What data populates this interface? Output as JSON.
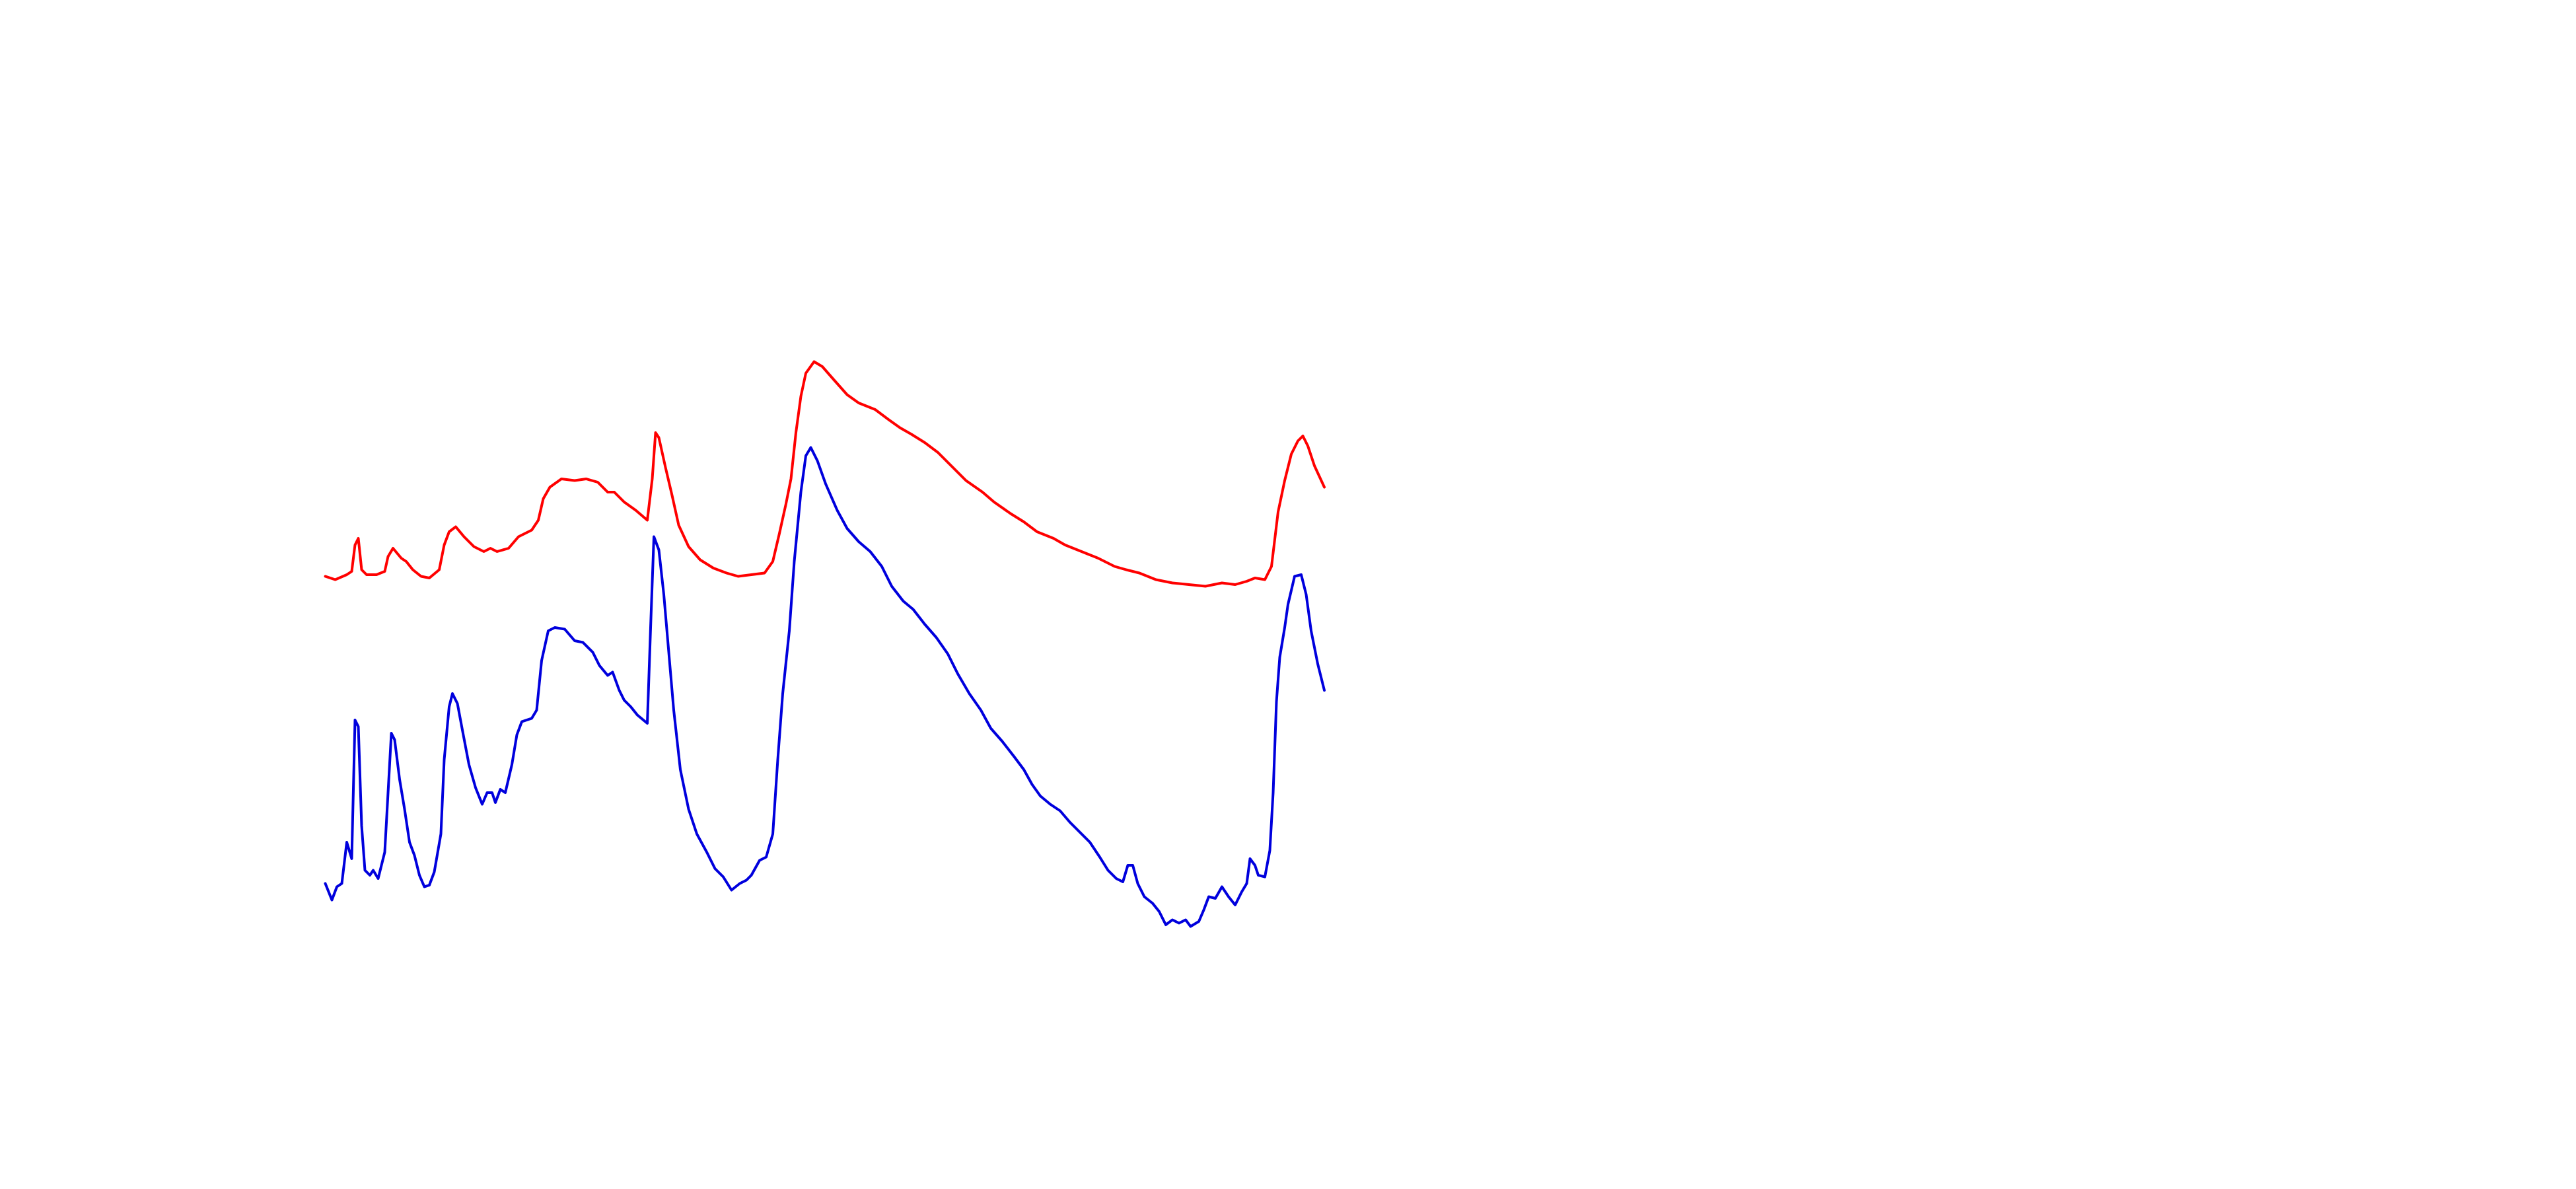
{
  "chart_data": {
    "type": "line",
    "xlim": [
      0,
      1560
    ],
    "ylim": [
      720,
      0
    ],
    "series": [
      {
        "color": "#ff0000",
        "x": [
          197,
          203,
          210,
          213,
          215,
          217,
          219,
          222,
          228,
          233,
          235,
          238,
          243,
          246,
          250,
          255,
          260,
          266,
          269,
          272,
          276,
          281,
          287,
          293,
          297,
          301,
          308,
          314,
          322,
          326,
          329,
          333,
          340,
          348,
          355,
          362,
          368,
          372,
          378,
          385,
          392,
          395,
          397,
          399,
          403,
          407,
          411,
          417,
          424,
          432,
          440,
          447,
          455,
          463,
          468,
          472,
          476,
          479,
          482,
          485,
          488,
          493,
          498,
          505,
          513,
          520,
          530,
          538,
          545,
          552,
          560,
          568,
          576,
          585,
          595,
          602,
          612,
          620,
          628,
          638,
          645,
          655,
          665,
          675,
          682,
          690,
          700,
          710,
          720,
          730,
          740,
          748,
          755,
          760,
          766,
          770,
          774,
          778,
          782,
          786,
          789,
          792,
          796,
          802
        ],
        "values": [
          349,
          351,
          348,
          346,
          330,
          326,
          345,
          348,
          348,
          346,
          337,
          332,
          338,
          340,
          345,
          349,
          350,
          345,
          330,
          322,
          319,
          325,
          331,
          334,
          332,
          334,
          332,
          325,
          321,
          315,
          302,
          295,
          290,
          291,
          290,
          292,
          298,
          298,
          304,
          309,
          315,
          290,
          262,
          265,
          283,
          300,
          318,
          331,
          339,
          344,
          347,
          349,
          348,
          347,
          340,
          323,
          305,
          290,
          262,
          240,
          226,
          219,
          222,
          230,
          239,
          244,
          248,
          254,
          259,
          263,
          268,
          274,
          282,
          291,
          298,
          304,
          311,
          316,
          322,
          326,
          330,
          334,
          338,
          343,
          345,
          347,
          351,
          353,
          354,
          355,
          353,
          354,
          352,
          350,
          351,
          343,
          310,
          291,
          275,
          267,
          264,
          270,
          282,
          295
        ]
      },
      {
        "color": "#0000dd",
        "x": [
          197,
          201,
          204,
          207,
          210,
          213,
          215,
          217,
          219,
          221,
          224,
          226,
          229,
          233,
          235,
          237,
          239,
          242,
          245,
          248,
          251,
          254,
          257,
          260,
          263,
          267,
          269,
          272,
          274,
          277,
          280,
          284,
          288,
          292,
          295,
          298,
          300,
          303,
          306,
          310,
          313,
          316,
          322,
          325,
          328,
          332,
          336,
          342,
          348,
          353,
          359,
          363,
          368,
          371,
          375,
          378,
          382,
          386,
          392,
          394,
          396,
          399,
          402,
          405,
          408,
          412,
          417,
          422,
          428,
          433,
          438,
          443,
          448,
          452,
          455,
          460,
          464,
          468,
          471,
          474,
          478,
          481,
          485,
          488,
          491,
          495,
          500,
          507,
          513,
          520,
          527,
          534,
          540,
          547,
          553,
          560,
          567,
          574,
          580,
          587,
          594,
          600,
          607,
          614,
          620,
          625,
          630,
          636,
          642,
          648,
          654,
          660,
          666,
          671,
          676,
          680,
          683,
          686,
          689,
          693,
          698,
          702,
          706,
          710,
          714,
          718,
          721,
          726,
          729,
          732,
          736,
          740,
          744,
          748,
          752,
          755,
          757,
          760,
          762,
          766,
          769,
          771,
          773,
          775,
          778,
          780,
          784,
          788,
          791,
          794,
          798,
          802
        ],
        "values": [
          535,
          545,
          537,
          535,
          510,
          520,
          436,
          440,
          500,
          527,
          530,
          527,
          532,
          516,
          480,
          444,
          448,
          472,
          490,
          510,
          518,
          530,
          537,
          536,
          528,
          505,
          460,
          428,
          420,
          426,
          442,
          463,
          477,
          487,
          480,
          480,
          486,
          478,
          480,
          463,
          445,
          437,
          435,
          430,
          400,
          382,
          380,
          381,
          388,
          389,
          395,
          403,
          409,
          407,
          418,
          424,
          428,
          433,
          438,
          380,
          325,
          333,
          360,
          395,
          430,
          466,
          490,
          505,
          516,
          526,
          531,
          539,
          535,
          533,
          530,
          521,
          519,
          505,
          460,
          420,
          382,
          340,
          298,
          276,
          271,
          279,
          293,
          309,
          320,
          328,
          334,
          343,
          355,
          364,
          369,
          378,
          386,
          396,
          408,
          420,
          430,
          441,
          449,
          458,
          466,
          475,
          482,
          487,
          491,
          498,
          504,
          510,
          519,
          527,
          532,
          534,
          524,
          524,
          535,
          543,
          547,
          552,
          560,
          557,
          559,
          557,
          561,
          558,
          551,
          543,
          544,
          537,
          543,
          548,
          540,
          535,
          520,
          524,
          530,
          531,
          515,
          480,
          425,
          398,
          380,
          366,
          349,
          348,
          360,
          382,
          402,
          418
        ]
      }
    ]
  }
}
